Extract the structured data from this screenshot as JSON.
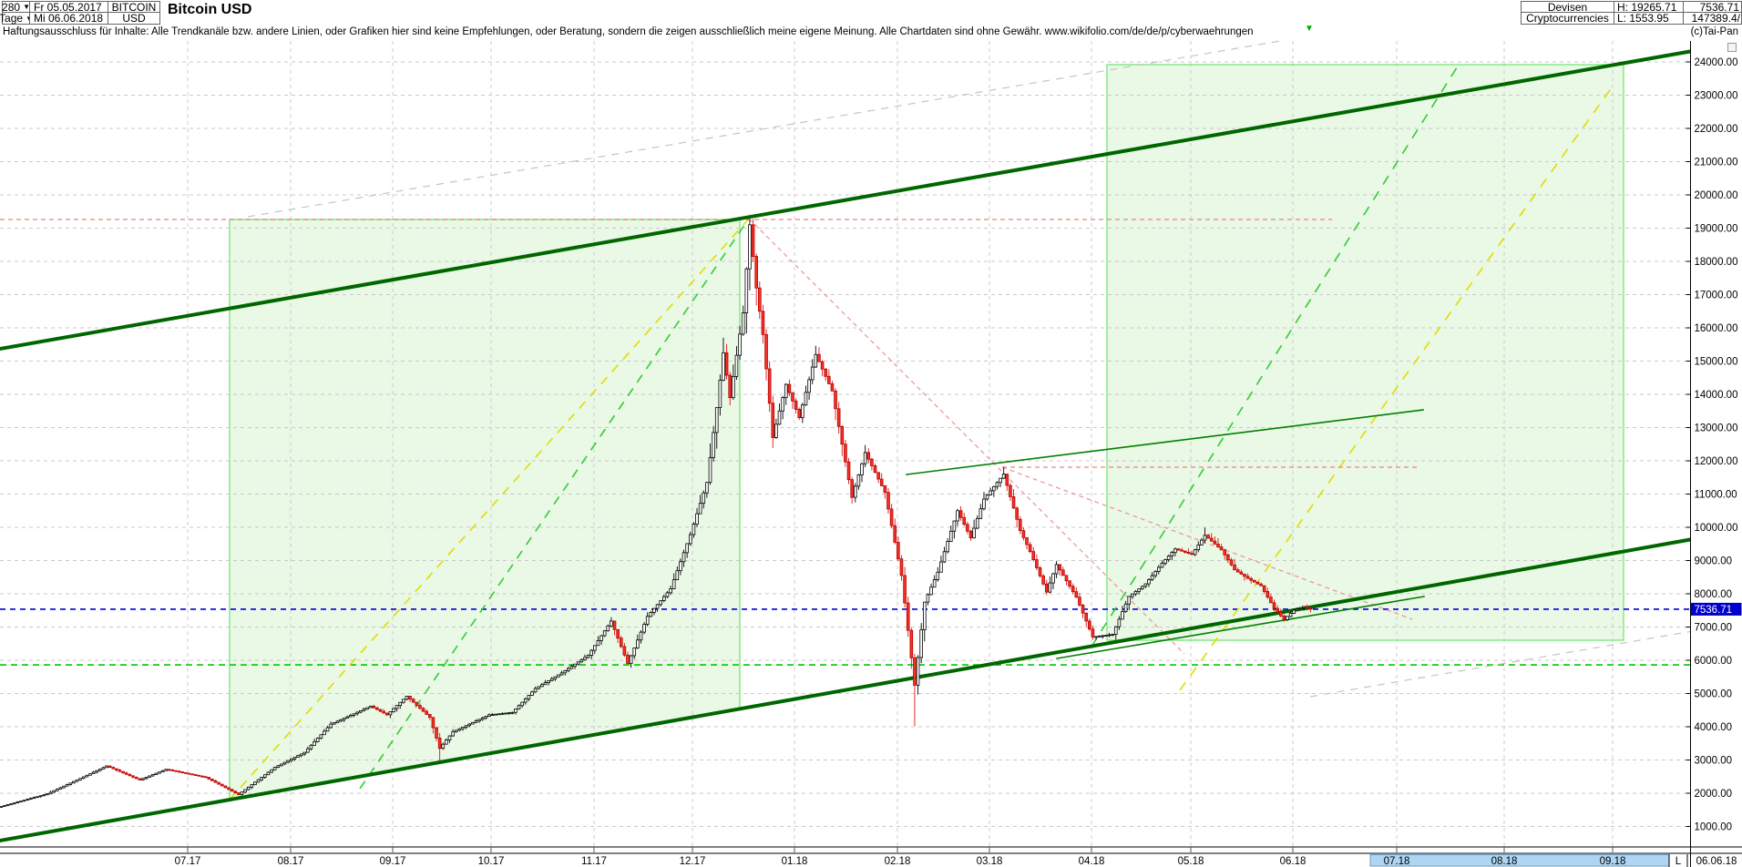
{
  "header": {
    "period_value": "280",
    "timeframe_value": "Tage",
    "date_from": "Fr 05.05.2017",
    "date_to": "Mi 06.06.2018",
    "symbol_line1": "BITCOIN",
    "symbol_line2": "USD",
    "title": "Bitcoin USD",
    "category_line1": "Devisen",
    "category_line2": "Cryptocurrencies",
    "high_label": "H: 19265.71",
    "low_label": "L: 1553.95",
    "last_price": "7536.71",
    "volume_text": "147389.4/",
    "copyright": "(c)Tai-Pan",
    "dropdown_arrow": "▼"
  },
  "disclaimer": {
    "text": "Haftungsausschluss für Inhalte: Alle Trendkanäle bzw. andere Linien, oder Grafiken hier sind keine Empfehlungen, oder Beratung, sondern die zeigen ausschließlich meine eigene Meinung. Alle Chartdaten sind ohne Gewähr.  www.wikifolio.com/de/de/p/cyberwaehrungen",
    "marker_glyph": "▼"
  },
  "axis": {
    "y_max": 24000,
    "y_min": 1000,
    "y_step": 1000,
    "price_marker_value": "7536.71",
    "months": [
      [
        "07.17",
        206
      ],
      [
        "08.17",
        319
      ],
      [
        "09.17",
        431
      ],
      [
        "10.17",
        539
      ],
      [
        "11.17",
        652
      ],
      [
        "12.17",
        760
      ],
      [
        "01.18",
        872
      ],
      [
        "02.18",
        985
      ],
      [
        "03.18",
        1086
      ],
      [
        "04.18",
        1198
      ],
      [
        "05.18",
        1307
      ],
      [
        "06.18",
        1419
      ]
    ],
    "future_months": [
      [
        "07.18",
        1533
      ],
      [
        "08.18",
        1651
      ],
      [
        "09.18",
        1770
      ]
    ],
    "future_box": {
      "x1": 1504,
      "x2": 1832
    },
    "last_marker": "L",
    "last_date": "06.06.18"
  },
  "chart_data": {
    "type": "candlestick",
    "title": "Bitcoin USD",
    "period": "05.05.2017 - 06.06.2018",
    "high": 19265.71,
    "low": 1553.95,
    "last_close": 7536.71,
    "ylim": [
      350,
      24600
    ],
    "days_total": 398,
    "grid": "on",
    "close_anchors": [
      [
        0,
        1600
      ],
      [
        14,
        1980
      ],
      [
        32,
        2820
      ],
      [
        42,
        2400
      ],
      [
        50,
        2720
      ],
      [
        62,
        2480
      ],
      [
        72,
        1960
      ],
      [
        83,
        2780
      ],
      [
        92,
        3230
      ],
      [
        100,
        4080
      ],
      [
        107,
        4390
      ],
      [
        112,
        4620
      ],
      [
        117,
        4360
      ],
      [
        123,
        4920
      ],
      [
        130,
        4280
      ],
      [
        133,
        3350
      ],
      [
        137,
        3850
      ],
      [
        148,
        4360
      ],
      [
        155,
        4430
      ],
      [
        162,
        5150
      ],
      [
        170,
        5620
      ],
      [
        178,
        6150
      ],
      [
        185,
        7180
      ],
      [
        190,
        5900
      ],
      [
        196,
        7320
      ],
      [
        203,
        8150
      ],
      [
        209,
        9780
      ],
      [
        214,
        11350
      ],
      [
        217,
        13600
      ],
      [
        219,
        15250
      ],
      [
        221,
        13900
      ],
      [
        225,
        16450
      ],
      [
        227,
        19100
      ],
      [
        229,
        17200
      ],
      [
        231,
        15800
      ],
      [
        234,
        12700
      ],
      [
        238,
        14300
      ],
      [
        242,
        13300
      ],
      [
        247,
        15200
      ],
      [
        252,
        14100
      ],
      [
        258,
        10900
      ],
      [
        262,
        12250
      ],
      [
        268,
        11050
      ],
      [
        273,
        8550
      ],
      [
        277,
        5250
      ],
      [
        280,
        7750
      ],
      [
        284,
        8650
      ],
      [
        290,
        10500
      ],
      [
        294,
        9680
      ],
      [
        298,
        10850
      ],
      [
        304,
        11600
      ],
      [
        309,
        9900
      ],
      [
        312,
        9270
      ],
      [
        317,
        8050
      ],
      [
        320,
        8880
      ],
      [
        326,
        7900
      ],
      [
        331,
        6700
      ],
      [
        337,
        6780
      ],
      [
        342,
        7920
      ],
      [
        347,
        8300
      ],
      [
        352,
        8920
      ],
      [
        356,
        9350
      ],
      [
        361,
        9180
      ],
      [
        365,
        9760
      ],
      [
        370,
        9320
      ],
      [
        374,
        8720
      ],
      [
        378,
        8460
      ],
      [
        382,
        8240
      ],
      [
        386,
        7560
      ],
      [
        389,
        7220
      ],
      [
        392,
        7510
      ],
      [
        395,
        7620
      ],
      [
        397,
        7536.71
      ]
    ],
    "wick_overrides": {
      "133": {
        "low": 2990
      },
      "227": {
        "high": 19265.71
      },
      "277": {
        "low": 4020
      },
      "304": {
        "high": 11810
      },
      "365": {
        "high": 9990
      }
    },
    "levels": [
      {
        "name": "last-price-level",
        "value": 7536.71,
        "color": "#0000dd",
        "dash": "6 5",
        "w": 1.6
      },
      {
        "name": "support-level",
        "value": 5860,
        "color": "#00c800",
        "dash": "7 5",
        "w": 1.6
      }
    ],
    "regions": [
      {
        "name": "projection-box-left",
        "points": [
          [
            252,
            241
          ],
          [
            812,
            241
          ],
          [
            812,
            779
          ],
          [
            252,
            878
          ]
        ]
      },
      {
        "name": "projection-box-right",
        "points": [
          [
            1215,
            71
          ],
          [
            1782,
            71
          ],
          [
            1782,
            703
          ],
          [
            1215,
            703
          ]
        ]
      }
    ],
    "solid_lines": [
      {
        "name": "trend-channel-upper",
        "x1": 0,
        "y1": 383,
        "x2": 1858,
        "y2": 56,
        "color": "#006600",
        "w": 4
      },
      {
        "name": "trend-channel-lower",
        "x1": 0,
        "y1": 923,
        "x2": 1858,
        "y2": 592,
        "color": "#006600",
        "w": 4
      },
      {
        "name": "minor-support-line",
        "x1": 1160,
        "y1": 723,
        "x2": 1563,
        "y2": 655,
        "color": "#008000",
        "w": 1.6
      },
      {
        "name": "minor-resistance-line",
        "x1": 995,
        "y1": 521,
        "x2": 1562,
        "y2": 450,
        "color": "#008000",
        "w": 1.6
      }
    ],
    "dashed_lines": [
      {
        "name": "gray-parallel-upper",
        "x1": 272,
        "y1": 238,
        "x2": 1405,
        "y2": 45,
        "color": "#c4c4c4",
        "w": 1.2,
        "dash": "8 7"
      },
      {
        "name": "gray-parallel-lower",
        "x1": 1438,
        "y1": 765,
        "x2": 1858,
        "y2": 693,
        "color": "#c4c4c4",
        "w": 1.2,
        "dash": "8 7"
      },
      {
        "name": "fan-yellow-left",
        "x1": 252,
        "y1": 878,
        "x2": 822,
        "y2": 240,
        "color": "#dede00",
        "w": 1.6,
        "dash": "10 8"
      },
      {
        "name": "fan-green-left",
        "x1": 395,
        "y1": 866,
        "x2": 822,
        "y2": 240,
        "color": "#33cc33",
        "w": 1.6,
        "dash": "10 8"
      },
      {
        "name": "fan-green-right",
        "x1": 1198,
        "y1": 710,
        "x2": 1601,
        "y2": 71,
        "color": "#33cc33",
        "w": 1.6,
        "dash": "11 9"
      },
      {
        "name": "fan-yellow-right",
        "x1": 1295,
        "y1": 758,
        "x2": 1772,
        "y2": 92,
        "color": "#dede00",
        "w": 1.6,
        "dash": "11 9"
      },
      {
        "name": "red-high-horizontal",
        "x1": 0,
        "y1": 241,
        "x2": 1462,
        "y2": 241,
        "color": "#f08080",
        "w": 1.2,
        "dash": "5 4"
      },
      {
        "name": "red-mid-horizontal",
        "x1": 1100,
        "y1": 513,
        "x2": 1557,
        "y2": 513,
        "color": "#f08080",
        "w": 1.2,
        "dash": "5 4"
      },
      {
        "name": "red-fan-steep",
        "x1": 822,
        "y1": 240,
        "x2": 1300,
        "y2": 718,
        "color": "#f09090",
        "w": 1.2,
        "dash": "5 4"
      },
      {
        "name": "red-fan-shallow",
        "x1": 1100,
        "y1": 513,
        "x2": 1550,
        "y2": 680,
        "color": "#f09090",
        "w": 1.2,
        "dash": "5 4"
      }
    ],
    "colors": {
      "up_fill": "#ffffff",
      "up_stroke": "#000000",
      "down_fill": "#f23428",
      "down_stroke": "#b80000",
      "down_wick": "#e01510",
      "grid": "#c9c9c9",
      "region_fill": "#eaf8e6",
      "region_stroke": "#86e986",
      "future_box_fill": "#aed6f2",
      "future_box_stroke": "#6aa0cc",
      "price_tag_bg": "#0000cc"
    }
  }
}
